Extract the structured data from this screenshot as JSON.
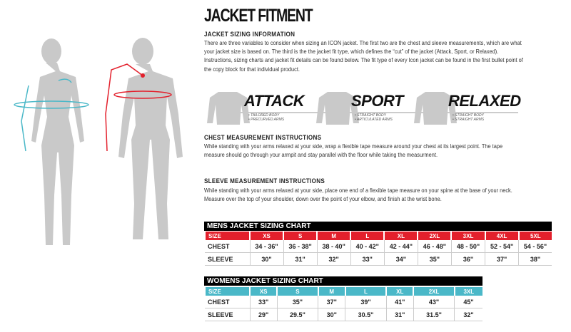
{
  "title": "JACKET FITMENT",
  "info": {
    "heading": "JACKET SIZING INFORMATION",
    "text": "There are three variables to consider when sizing an ICON jacket. The  first two are the chest and sleeve measurements, which are what your jacket size is based on. The third is the the jacket fit type, which defines the “cut” of the jacket (Attack, Sport, or Relaxed). Instructions, sizing charts and jacket fit details can be found below. The fit type of every Icon jacket can be found in the first bullet point of the copy block for that individual product."
  },
  "fits": [
    {
      "name": "ATTACK",
      "bullets": [
        "• TAILORED BODY",
        "• PRECURVED ARMS"
      ]
    },
    {
      "name": "SPORT",
      "bullets": [
        "• STRAIGHT BODY",
        "• ARTICULATED ARMS"
      ]
    },
    {
      "name": "RELAXED",
      "bullets": [
        "• STRAIGHT BODY",
        "• STRAIGHT ARMS"
      ]
    }
  ],
  "chest": {
    "heading": "CHEST MEASUREMENT INSTRUCTIONS",
    "text": "While standing with your arms relaxed at your side, wrap a flexible tape measure around your chest at its largest point. The tape measure should go through your armpit and stay parallel with the floor while taking the measurment."
  },
  "sleeve": {
    "heading": "SLEEVE MEASUREMENT INSTRUCTIONS",
    "text": "While standing with your arms relaxed at your side, place one end of a flexible tape measure on your spine at the base of your neck. Measure over the top of your shoulder, down over the point of your elbow, and finish at the wrist bone."
  },
  "mens": {
    "title": "MENS JACKET SIZING CHART",
    "color": "#e3202c",
    "rows": [
      [
        "SIZE",
        "XS",
        "S",
        "M",
        "L",
        "XL",
        "2XL",
        "3XL",
        "4XL",
        "5XL"
      ],
      [
        "CHEST",
        "34 - 36\"",
        "36 - 38\"",
        "38 - 40\"",
        "40 - 42\"",
        "42 - 44\"",
        "46 - 48\"",
        "48 - 50\"",
        "52 - 54\"",
        "54 - 56\""
      ],
      [
        "SLEEVE",
        "30\"",
        "31\"",
        "32\"",
        "33\"",
        "34\"",
        "35\"",
        "36\"",
        "37\"",
        "38\""
      ]
    ]
  },
  "womens": {
    "title": "WOMENS JACKET SIZING CHART",
    "color": "#4ab8c8",
    "rows": [
      [
        "SIZE",
        "XS",
        "S",
        "M",
        "L",
        "XL",
        "2XL",
        "3XL"
      ],
      [
        "CHEST",
        "33\"",
        "35\"",
        "37\"",
        "39\"",
        "41\"",
        "43\"",
        "45\""
      ],
      [
        "SLEEVE",
        "29\"",
        "29.5\"",
        "30\"",
        "30.5\"",
        "31\"",
        "31.5\"",
        "32\""
      ]
    ]
  }
}
